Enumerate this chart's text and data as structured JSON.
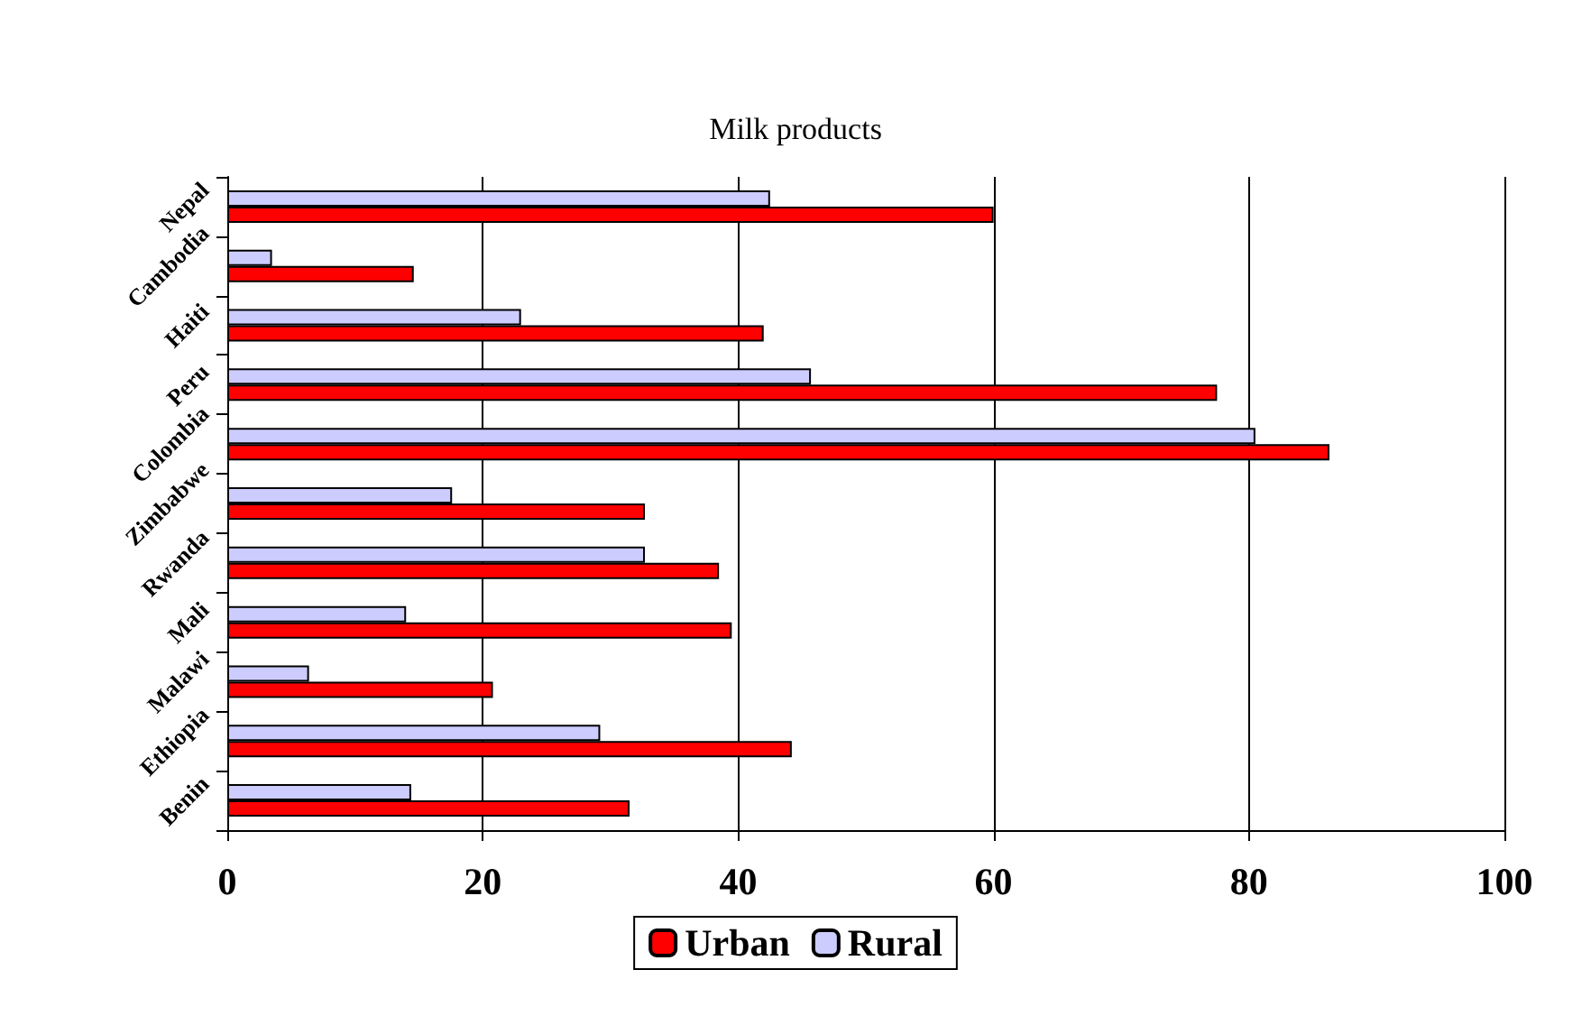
{
  "chart_data": {
    "type": "bar",
    "orientation": "horizontal",
    "title": "Milk products",
    "categories": [
      "Nepal",
      "Cambodia",
      "Haiti",
      "Peru",
      "Colombia",
      "Zimbabwe",
      "Rwanda",
      "Mali",
      "Malawi",
      "Ethiopia",
      "Benin"
    ],
    "series": [
      {
        "name": "Urban",
        "color": "#ff0000",
        "values": [
          60,
          14.6,
          42,
          77.5,
          86.3,
          32.7,
          38.5,
          39.5,
          20.8,
          44.2,
          31.5
        ]
      },
      {
        "name": "Rural",
        "color": "#ccccff",
        "values": [
          42.5,
          3.5,
          23,
          45.7,
          80.5,
          17.6,
          32.7,
          14,
          6.4,
          29.2,
          14.4
        ]
      }
    ],
    "xlim": [
      0,
      100
    ],
    "xticks": [
      0,
      20,
      40,
      60,
      80,
      100
    ],
    "grid": "x",
    "legend": "bottom"
  }
}
